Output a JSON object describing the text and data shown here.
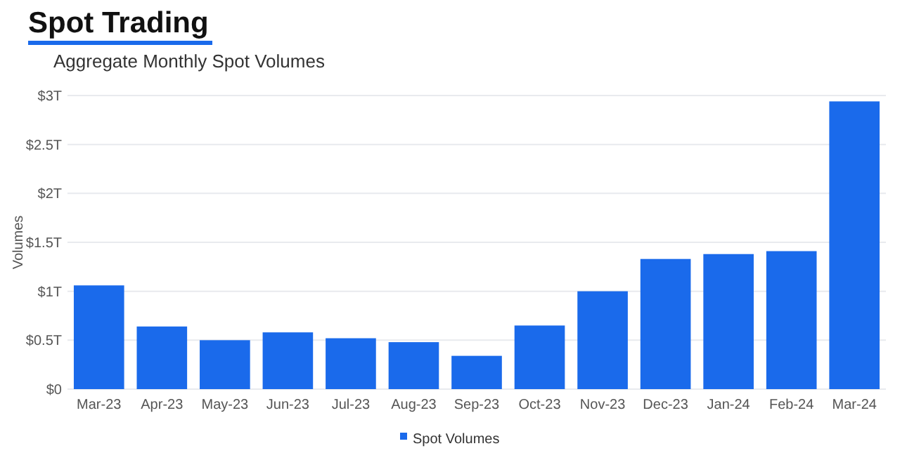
{
  "chart_data": {
    "type": "bar",
    "title": "Spot Trading",
    "subtitle": "Aggregate Monthly Spot Volumes",
    "ylabel": "Volumes",
    "categories": [
      "Mar-23",
      "Apr-23",
      "May-23",
      "Jun-23",
      "Jul-23",
      "Aug-23",
      "Sep-23",
      "Oct-23",
      "Nov-23",
      "Dec-23",
      "Jan-24",
      "Feb-24",
      "Mar-24"
    ],
    "series": [
      {
        "name": "Spot Volumes",
        "color": "#1a6aeb",
        "values": [
          1.06,
          0.64,
          0.5,
          0.58,
          0.52,
          0.48,
          0.34,
          0.65,
          1.0,
          1.33,
          1.38,
          1.41,
          2.94
        ]
      }
    ],
    "ylim": [
      0,
      3
    ],
    "yticks": [
      {
        "value": 0,
        "label": "$0"
      },
      {
        "value": 0.5,
        "label": "$0.5T"
      },
      {
        "value": 1,
        "label": "$1T"
      },
      {
        "value": 1.5,
        "label": "$1.5T"
      },
      {
        "value": 2,
        "label": "$2T"
      },
      {
        "value": 2.5,
        "label": "$2.5T"
      },
      {
        "value": 3,
        "label": "$3T"
      }
    ],
    "grid": "y",
    "legend": "bottom"
  }
}
